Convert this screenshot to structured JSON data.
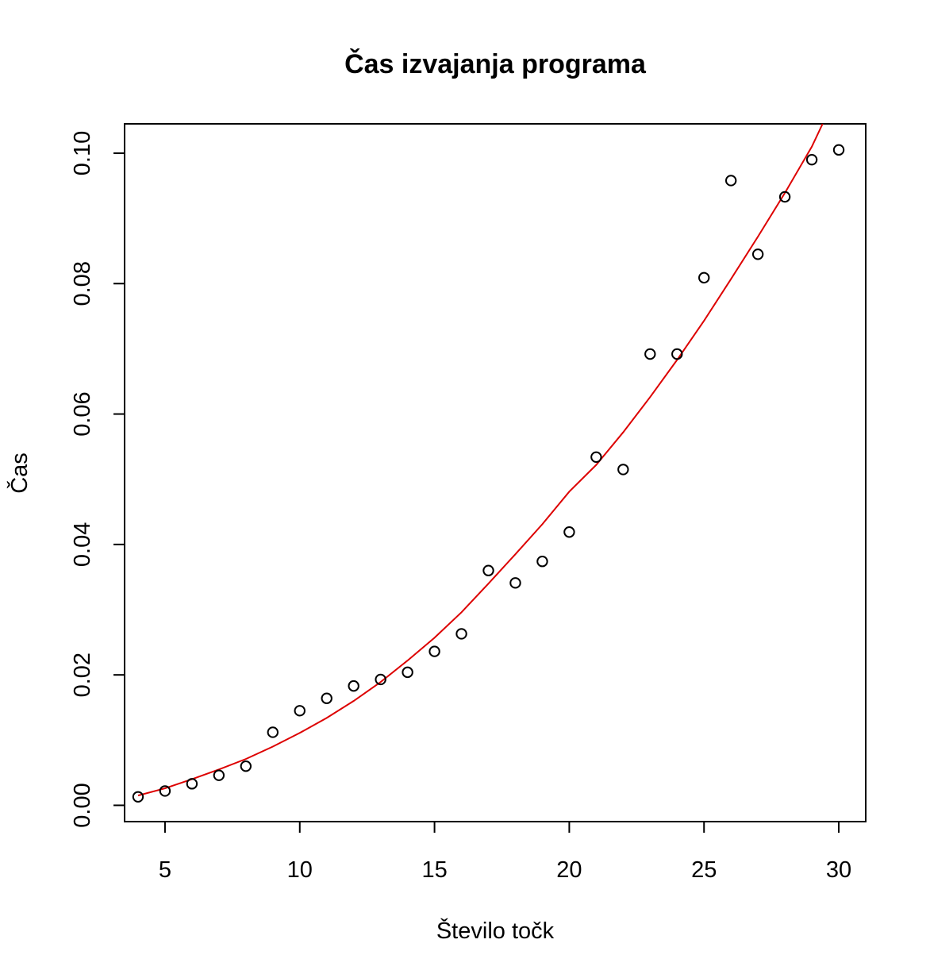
{
  "chart_data": {
    "type": "scatter",
    "title": "Čas izvajanja programa",
    "xlabel": "Število točk",
    "ylabel": "Čas",
    "xlim": [
      3.5,
      31
    ],
    "ylim": [
      -0.0025,
      0.1045
    ],
    "x_ticks": [
      5,
      10,
      15,
      20,
      25,
      30
    ],
    "x_tick_labels": [
      "5",
      "10",
      "15",
      "20",
      "25",
      "30"
    ],
    "y_ticks": [
      0.0,
      0.02,
      0.04,
      0.06,
      0.08,
      0.1
    ],
    "y_tick_labels": [
      "0.00",
      "0.02",
      "0.04",
      "0.06",
      "0.08",
      "0.10"
    ],
    "grid": false,
    "colors": {
      "points": "#000000",
      "fit_line": "#dd0000"
    },
    "series": [
      {
        "type": "scatter",
        "x": [
          4,
          5,
          6,
          7,
          8,
          9,
          10,
          11,
          12,
          13,
          14,
          15,
          16,
          17,
          18,
          19,
          20,
          21,
          22,
          23,
          24,
          25,
          26,
          27,
          28,
          29,
          30
        ],
        "y": [
          0.0013,
          0.0022,
          0.0033,
          0.0046,
          0.006,
          0.0112,
          0.0145,
          0.0164,
          0.0183,
          0.0193,
          0.0204,
          0.0236,
          0.0263,
          0.036,
          0.0341,
          0.0374,
          0.0419,
          0.0534,
          0.0515,
          0.0692,
          0.0692,
          0.0809,
          0.0958,
          0.0845,
          0.0933,
          0.099,
          0.1005
        ]
      },
      {
        "type": "line",
        "x": [
          4,
          5,
          6,
          7,
          8,
          9,
          10,
          11,
          12,
          13,
          14,
          15,
          16,
          17,
          18,
          19,
          20,
          21,
          22,
          23,
          24,
          25,
          26,
          27,
          28,
          29,
          29.4
        ],
        "y": [
          0.0015,
          0.0026,
          0.004,
          0.0055,
          0.0071,
          0.009,
          0.0111,
          0.0134,
          0.016,
          0.0189,
          0.0222,
          0.0257,
          0.0296,
          0.034,
          0.0385,
          0.0431,
          0.0481,
          0.0522,
          0.0572,
          0.0626,
          0.0683,
          0.0743,
          0.0807,
          0.0872,
          0.0939,
          0.101,
          0.1045
        ]
      }
    ]
  }
}
